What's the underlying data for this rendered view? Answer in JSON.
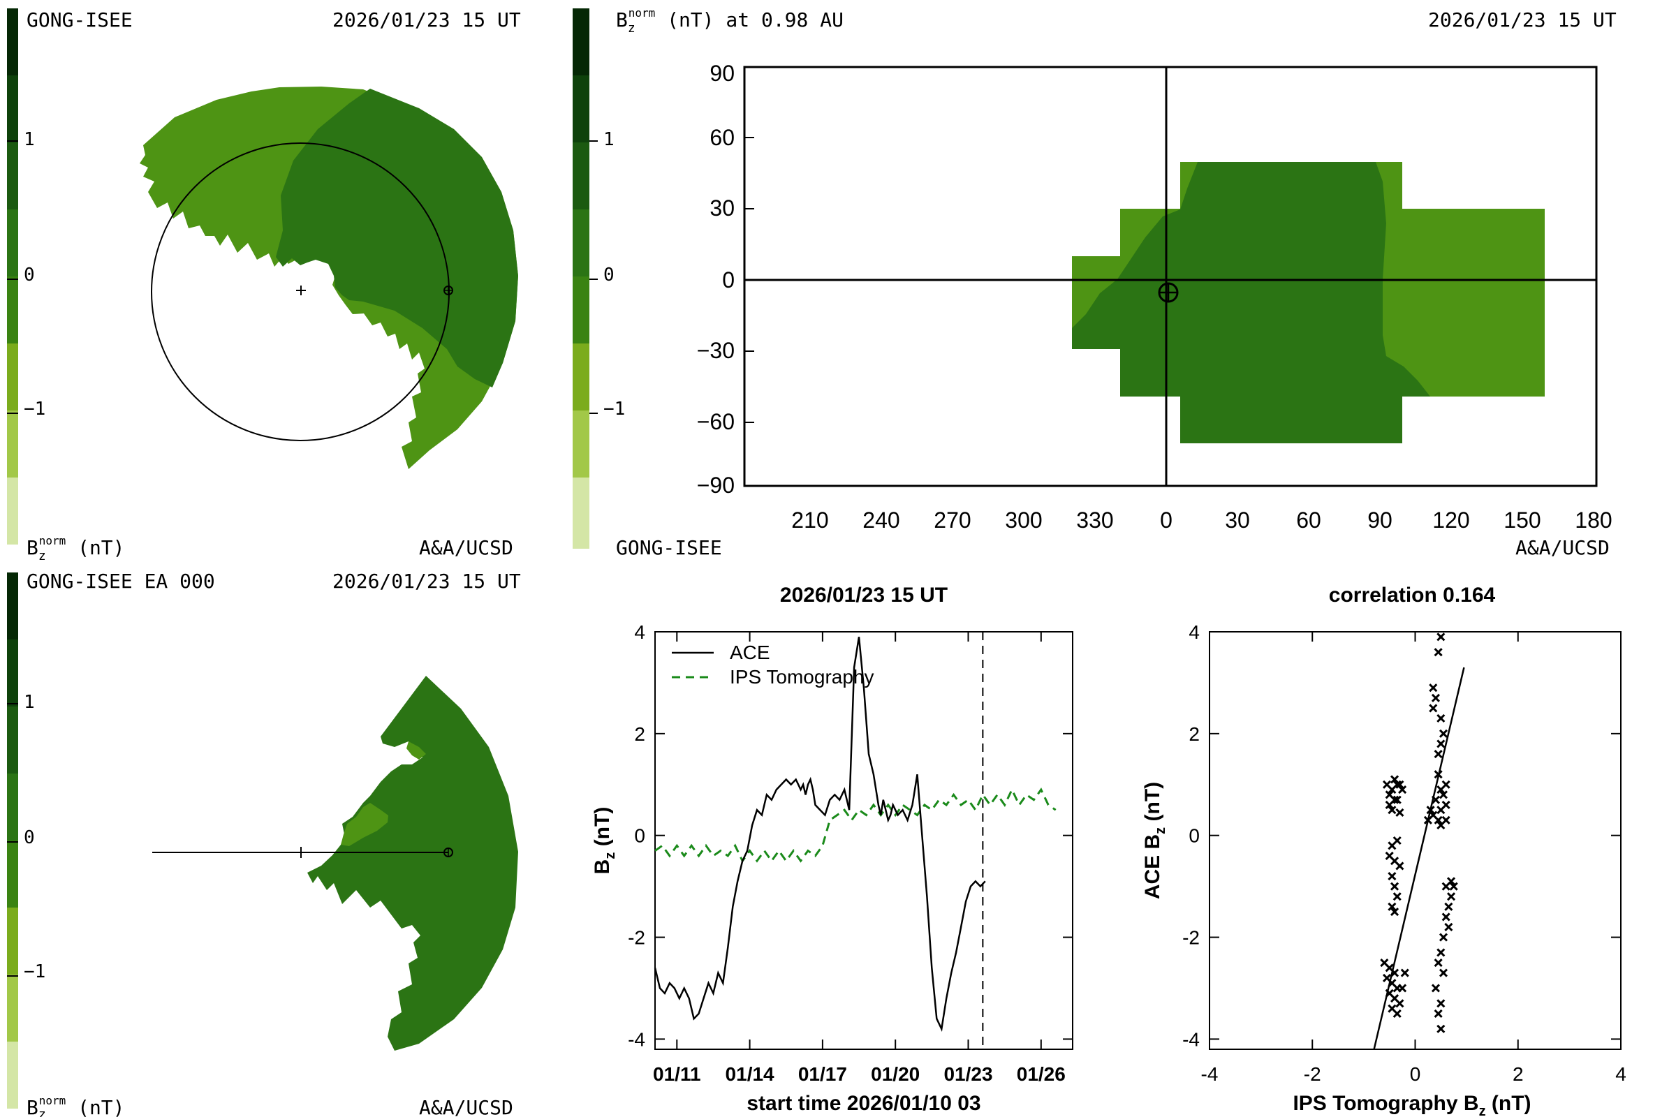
{
  "colors": {
    "scale": [
      "#d4e6a6",
      "#a2c848",
      "#7bac1c",
      "#4e9414",
      "#3a8312",
      "#2b7414",
      "#1b5a10",
      "#0e420b",
      "#052805"
    ],
    "dark_green": "#2b7414",
    "light_green": "#4e9414"
  },
  "panel_top_left": {
    "source": "GONG-ISEE",
    "datetime": "2026/01/23 15 UT",
    "colorbar_ticks": [
      "1",
      "0",
      "−1"
    ],
    "unit_label": "B",
    "unit_sub": "z",
    "unit_sup": "norm",
    "unit_suffix": " (nT)",
    "credit": "A&A/UCSD"
  },
  "panel_top_right": {
    "title_prefix": "B",
    "title_sub": "z",
    "title_sup": "norm",
    "title_suffix": " (nT) at 0.98 AU",
    "datetime": "2026/01/23 15 UT",
    "colorbar_ticks": [
      "1",
      "0",
      "−1"
    ],
    "source": "GONG-ISEE",
    "credit": "A&A/UCSD",
    "y_ticks": [
      "90",
      "60",
      "30",
      "0",
      "−30",
      "−60",
      "−90"
    ],
    "x_ticks": [
      "210",
      "240",
      "270",
      "300",
      "330",
      "0",
      "30",
      "60",
      "90",
      "120",
      "150",
      "180"
    ]
  },
  "panel_bottom_left": {
    "source": "GONG-ISEE EA 000",
    "datetime": "2026/01/23 15 UT",
    "colorbar_ticks": [
      "1",
      "0",
      "−1"
    ],
    "unit_label": "B",
    "unit_sub": "z",
    "unit_sup": "norm",
    "unit_suffix": " (nT)",
    "credit": "A&A/UCSD"
  },
  "chart_data": [
    {
      "type": "line",
      "title": "2026/01/23 15 UT",
      "xlabel": "start time 2026/01/10 03",
      "ylabel": "B",
      "ylabel_sub": "z",
      "ylabel_suffix": " (nT)",
      "x_tick_labels": [
        "01/11",
        "01/14",
        "01/17",
        "01/20",
        "01/23",
        "01/26"
      ],
      "y_tick_labels": [
        "4",
        "2",
        "0",
        "-2",
        "-4"
      ],
      "ylim": [
        -4.2,
        4.0
      ],
      "xlim_days": [
        0,
        17.2
      ],
      "now_marker_day": 13.5,
      "series": [
        {
          "name": "ACE",
          "style": "solid",
          "color": "#000000",
          "x": [
            0,
            0.2,
            0.4,
            0.6,
            0.8,
            1.0,
            1.2,
            1.4,
            1.6,
            1.8,
            2.0,
            2.2,
            2.4,
            2.6,
            2.8,
            3.0,
            3.2,
            3.4,
            3.6,
            3.8,
            4.0,
            4.2,
            4.4,
            4.6,
            4.8,
            5.0,
            5.2,
            5.4,
            5.6,
            5.8,
            6.0,
            6.1,
            6.2,
            6.3,
            6.4,
            6.5,
            6.6,
            6.8,
            7.0,
            7.2,
            7.4,
            7.6,
            7.8,
            8.0,
            8.2,
            8.4,
            8.6,
            8.8,
            9.0,
            9.2,
            9.3,
            9.4,
            9.5,
            9.6,
            9.7,
            9.8,
            10.0,
            10.2,
            10.4,
            10.6,
            10.8,
            11.0,
            11.2,
            11.4,
            11.6,
            11.8,
            12.0,
            12.2,
            12.4,
            12.6,
            12.8,
            13.0,
            13.2,
            13.4,
            13.6
          ],
          "y": [
            -2.6,
            -3.0,
            -3.1,
            -2.9,
            -3.0,
            -3.2,
            -3.0,
            -3.2,
            -3.6,
            -3.5,
            -3.2,
            -2.9,
            -3.1,
            -2.7,
            -2.9,
            -2.2,
            -1.4,
            -0.9,
            -0.5,
            -0.3,
            0.2,
            0.5,
            0.4,
            0.8,
            0.7,
            0.9,
            1.0,
            1.1,
            1.0,
            1.1,
            0.9,
            1.0,
            0.8,
            1.0,
            1.1,
            0.9,
            0.6,
            0.5,
            0.4,
            0.7,
            0.8,
            0.7,
            0.9,
            0.5,
            3.3,
            3.9,
            2.9,
            1.6,
            1.2,
            0.6,
            0.4,
            0.7,
            0.5,
            0.3,
            0.4,
            0.6,
            0.4,
            0.5,
            0.3,
            0.6,
            1.2,
            0.0,
            -1.2,
            -2.6,
            -3.6,
            -3.8,
            -3.2,
            -2.7,
            -2.3,
            -1.8,
            -1.3,
            -1.0,
            -0.9,
            -1.0,
            -0.9
          ]
        },
        {
          "name": "IPS Tomography",
          "style": "dashed",
          "color": "#1a8a1a",
          "x": [
            0,
            0.3,
            0.6,
            0.9,
            1.2,
            1.5,
            1.8,
            2.1,
            2.4,
            2.7,
            3.0,
            3.3,
            3.6,
            3.9,
            4.2,
            4.5,
            4.8,
            5.1,
            5.4,
            5.7,
            6.0,
            6.3,
            6.6,
            6.9,
            7.2,
            7.5,
            7.8,
            8.1,
            8.4,
            8.7,
            9.0,
            9.3,
            9.6,
            9.9,
            10.2,
            10.5,
            10.8,
            11.1,
            11.4,
            11.7,
            12.0,
            12.3,
            12.6,
            12.9,
            13.2,
            13.5,
            13.8,
            14.1,
            14.4,
            14.7,
            15.0,
            15.3,
            15.6,
            15.9,
            16.2,
            16.5
          ],
          "y": [
            -0.3,
            -0.2,
            -0.4,
            -0.2,
            -0.4,
            -0.2,
            -0.4,
            -0.2,
            -0.4,
            -0.3,
            -0.4,
            -0.2,
            -0.5,
            -0.3,
            -0.5,
            -0.3,
            -0.5,
            -0.3,
            -0.5,
            -0.3,
            -0.5,
            -0.3,
            -0.4,
            -0.2,
            0.3,
            0.4,
            0.5,
            0.3,
            0.5,
            0.4,
            0.6,
            0.4,
            0.6,
            0.4,
            0.6,
            0.5,
            0.4,
            0.6,
            0.5,
            0.7,
            0.6,
            0.8,
            0.6,
            0.7,
            0.5,
            0.8,
            0.6,
            0.8,
            0.6,
            0.9,
            0.6,
            0.8,
            0.7,
            0.9,
            0.6,
            0.5
          ]
        }
      ]
    },
    {
      "type": "scatter",
      "title": "correlation 0.164",
      "xlabel": "IPS Tomography B",
      "xlabel_sub": "z",
      "xlabel_suffix": " (nT)",
      "ylabel": "ACE B",
      "ylabel_sub": "z",
      "ylabel_suffix": " (nT)",
      "x_tick_labels": [
        "-4",
        "-2",
        "0",
        "2",
        "4"
      ],
      "y_tick_labels": [
        "4",
        "2",
        "0",
        "-2",
        "-4"
      ],
      "xlim": [
        -4,
        4
      ],
      "ylim": [
        -4.2,
        4.0
      ],
      "fit_line": {
        "x": [
          -0.8,
          0.95
        ],
        "y": [
          -4.2,
          3.3
        ]
      },
      "points": [
        [
          0.5,
          3.9
        ],
        [
          0.45,
          3.6
        ],
        [
          0.35,
          2.9
        ],
        [
          0.4,
          2.7
        ],
        [
          0.35,
          2.5
        ],
        [
          0.5,
          2.3
        ],
        [
          0.55,
          2.0
        ],
        [
          0.5,
          1.8
        ],
        [
          0.45,
          1.6
        ],
        [
          0.45,
          1.2
        ],
        [
          0.6,
          1.0
        ],
        [
          0.5,
          0.9
        ],
        [
          0.55,
          0.8
        ],
        [
          0.4,
          0.7
        ],
        [
          0.6,
          0.6
        ],
        [
          0.5,
          0.5
        ],
        [
          0.3,
          0.5
        ],
        [
          0.35,
          0.4
        ],
        [
          0.25,
          0.3
        ],
        [
          0.45,
          0.3
        ],
        [
          0.5,
          0.2
        ],
        [
          0.6,
          0.3
        ],
        [
          -0.4,
          1.1
        ],
        [
          -0.35,
          1.0
        ],
        [
          -0.45,
          0.9
        ],
        [
          -0.3,
          1.0
        ],
        [
          -0.5,
          0.8
        ],
        [
          -0.4,
          0.7
        ],
        [
          -0.55,
          1.0
        ],
        [
          -0.5,
          0.6
        ],
        [
          -0.35,
          0.7
        ],
        [
          -0.25,
          0.9
        ],
        [
          -0.45,
          0.5
        ],
        [
          -0.3,
          0.45
        ],
        [
          -0.35,
          -0.1
        ],
        [
          -0.45,
          -0.2
        ],
        [
          -0.5,
          -0.4
        ],
        [
          -0.4,
          -0.5
        ],
        [
          -0.3,
          -0.6
        ],
        [
          -0.45,
          -0.8
        ],
        [
          -0.4,
          -1.0
        ],
        [
          -0.35,
          -1.2
        ],
        [
          -0.45,
          -1.4
        ],
        [
          -0.4,
          -1.5
        ],
        [
          0.7,
          -0.9
        ],
        [
          0.75,
          -1.0
        ],
        [
          0.6,
          -1.0
        ],
        [
          0.7,
          -1.2
        ],
        [
          0.65,
          -1.4
        ],
        [
          0.6,
          -1.6
        ],
        [
          0.65,
          -1.8
        ],
        [
          0.55,
          -2.0
        ],
        [
          -0.6,
          -2.5
        ],
        [
          -0.5,
          -2.6
        ],
        [
          -0.4,
          -2.7
        ],
        [
          -0.55,
          -2.8
        ],
        [
          -0.45,
          -2.9
        ],
        [
          -0.35,
          -3.0
        ],
        [
          -0.5,
          -3.1
        ],
        [
          -0.4,
          -3.2
        ],
        [
          -0.3,
          -3.3
        ],
        [
          -0.45,
          -3.4
        ],
        [
          -0.35,
          -3.5
        ],
        [
          -0.25,
          -3.0
        ],
        [
          -0.2,
          -2.7
        ],
        [
          0.5,
          -2.3
        ],
        [
          0.45,
          -2.5
        ],
        [
          0.55,
          -2.7
        ],
        [
          0.4,
          -3.0
        ],
        [
          0.5,
          -3.3
        ],
        [
          0.45,
          -3.5
        ],
        [
          0.5,
          -3.8
        ]
      ]
    }
  ]
}
